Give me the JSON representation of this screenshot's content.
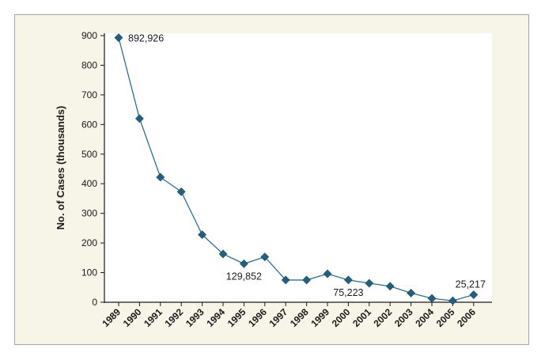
{
  "chart_data": {
    "type": "line",
    "title": "",
    "xlabel": "",
    "ylabel": "No. of Cases (thousands)",
    "x": [
      "1989",
      "1990",
      "1991",
      "1992",
      "1993",
      "1994",
      "1995",
      "1996",
      "1997",
      "1998",
      "1999",
      "2000",
      "2001",
      "2002",
      "2003",
      "2004",
      "2005",
      "2006"
    ],
    "series": [
      {
        "values": [
          892.926,
          620,
          422,
          373,
          228,
          163,
          129.852,
          153,
          75,
          75,
          96,
          75.223,
          64,
          54,
          31,
          13,
          5,
          25.217
        ]
      }
    ],
    "ylim": [
      0,
      900
    ],
    "yticks": [
      "0",
      "100",
      "200",
      "300",
      "400",
      "500",
      "600",
      "700",
      "800",
      "900"
    ],
    "grid": false,
    "legend": "none",
    "annotations": [
      {
        "index": 0,
        "text": "892,926"
      },
      {
        "index": 6,
        "text": "129,852"
      },
      {
        "index": 11,
        "text": "75,223"
      },
      {
        "index": 17,
        "text": "25,217"
      }
    ],
    "colors": {
      "line": "#2f6f8f",
      "marker": "#24607e",
      "plot_background": "#ffffff",
      "figure_background": "#f7f4e8",
      "axis": "#1a1a1a"
    }
  }
}
